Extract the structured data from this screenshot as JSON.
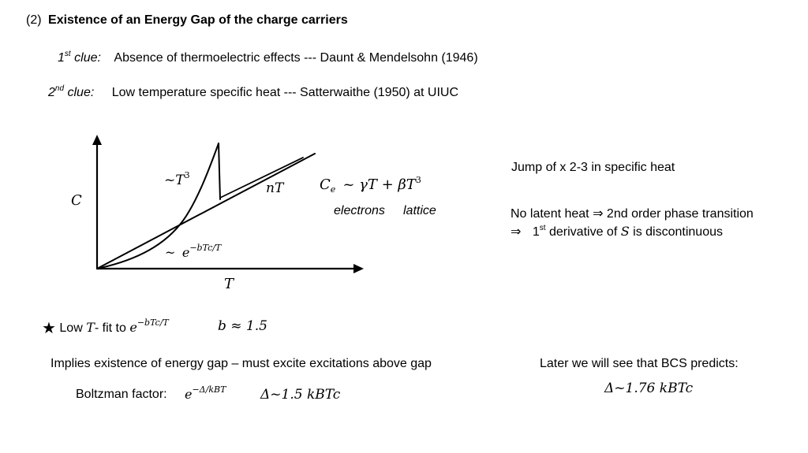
{
  "heading": {
    "number": "(2)",
    "title": "Existence of an Energy Gap of the charge carriers"
  },
  "clue1": {
    "ordinal": "1",
    "suffix": "st",
    "word": "clue:",
    "text": "Absence of thermoelectric effects --- Daunt & Mendelsohn (1946)"
  },
  "clue2": {
    "ordinal": "2",
    "suffix": "nd",
    "word": "clue:",
    "text": "Low temperature specific heat --- Satterwaithe (1950) at UIUC"
  },
  "graph": {
    "y_axis_label": "C",
    "x_axis_label": "T",
    "cubic_label_prefix": "~",
    "cubic_label_var": "T",
    "cubic_label_exp": "3",
    "linear_label": "nT",
    "exp_label_prefix": "~",
    "exp_label_base": "e",
    "exp_label_exp": "−bTc/T",
    "formula_lhs": "C",
    "formula_lhs_sub": "e",
    "formula_rhs_1": "~ γT + βT",
    "formula_rhs_exp": "3",
    "electrons_label": "electrons",
    "lattice_label": "lattice"
  },
  "right_notes": {
    "jump": "Jump of x 2-3 in specific heat",
    "latent_heat": "No latent heat ⇒ 2nd order phase transition",
    "derivative_arrow": "⇒",
    "derivative_ordinal": "1",
    "derivative_suffix": "st",
    "derivative_text_1": "derivative of",
    "derivative_var": "S",
    "derivative_text_2": "is discontinuous"
  },
  "fit_line": {
    "star_icon": "★",
    "text_1": "Low",
    "var_T": "T",
    "text_2": "- fit to",
    "exp_base": "e",
    "exp_exp": "−bTc/T",
    "b_result": "b ≈ 1.5"
  },
  "implies": "Implies existence of energy gap – must excite excitations above gap",
  "boltzmann": {
    "label": "Boltzman factor:",
    "exp_base": "e",
    "exp_exp": "−Δ/kBT",
    "gap": "Δ~1.5 kBTc"
  },
  "bcs": {
    "text": "Later we will see that BCS predicts:",
    "gap": "Δ~1.76 kBTc"
  }
}
